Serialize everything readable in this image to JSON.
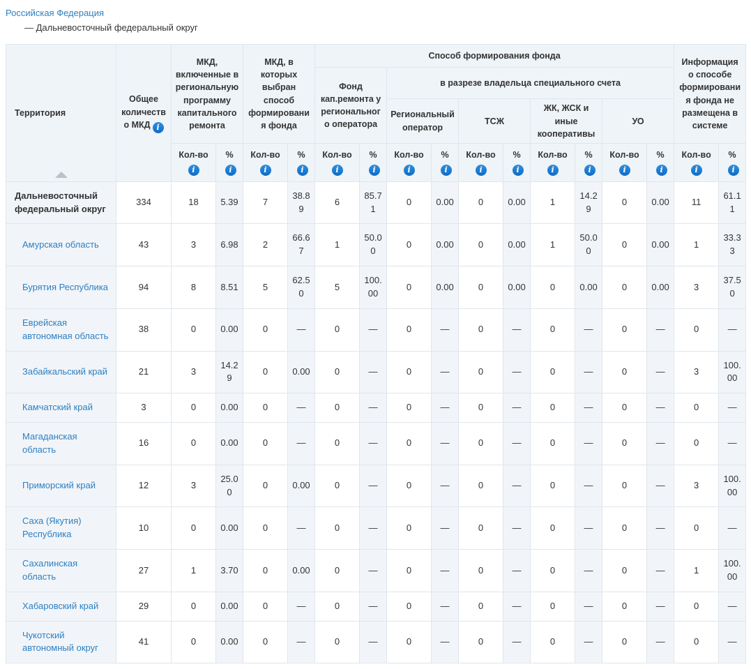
{
  "breadcrumb": {
    "root": "Российская Федерация",
    "current": "— Дальневосточный федеральный округ"
  },
  "colors": {
    "link_blue": "#2e7fc1",
    "info_icon_blue": "#1576d2",
    "row_tint": "#f1f5f9",
    "header_tint": "#eff4f8",
    "border": "#dfe6ec"
  },
  "icons": {
    "info": "info-icon",
    "sort": "sort-asc-triangle"
  },
  "table": {
    "header": {
      "territory": "Территория",
      "total_mkd": "Общее количество МКД",
      "group_program": "МКД, включенные в региональную программу капитального ремонта",
      "group_method_chosen": "МКД, в которых выбран способ формирования фонда",
      "group_method": "Способ формирования фонда",
      "fund_regional_operator": "Фонд кап.ремонта у регионального оператора",
      "special_account_owner": "в разрезе владельца специального счета",
      "regional_operator": "Региональный оператор",
      "tsg": "ТСЖ",
      "coops": "ЖК, ЖСК и иные кооперативы",
      "uo": "УО",
      "group_not_posted": "Информация о способе формирования фонда не размещена в системе",
      "count_label": "Кол-во",
      "percent_label": "%",
      "info_glyph": "i"
    },
    "rows": [
      {
        "territory": "Дальневосточный федеральный округ",
        "link": false,
        "bold": true,
        "values": [
          "334",
          "18",
          "5.39",
          "7",
          "38.89",
          "6",
          "85.71",
          "0",
          "0.00",
          "0",
          "0.00",
          "1",
          "14.29",
          "0",
          "0.00",
          "11",
          "61.11"
        ]
      },
      {
        "territory": "Амурская область",
        "link": true,
        "bold": false,
        "values": [
          "43",
          "3",
          "6.98",
          "2",
          "66.67",
          "1",
          "50.00",
          "0",
          "0.00",
          "0",
          "0.00",
          "1",
          "50.00",
          "0",
          "0.00",
          "1",
          "33.33"
        ]
      },
      {
        "territory": "Бурятия Республика",
        "link": true,
        "bold": false,
        "values": [
          "94",
          "8",
          "8.51",
          "5",
          "62.50",
          "5",
          "100.00",
          "0",
          "0.00",
          "0",
          "0.00",
          "0",
          "0.00",
          "0",
          "0.00",
          "3",
          "37.50"
        ]
      },
      {
        "territory": "Еврейская автономная область",
        "link": true,
        "bold": false,
        "values": [
          "38",
          "0",
          "0.00",
          "0",
          "—",
          "0",
          "—",
          "0",
          "—",
          "0",
          "—",
          "0",
          "—",
          "0",
          "—",
          "0",
          "—"
        ]
      },
      {
        "territory": "Забайкальский край",
        "link": true,
        "bold": false,
        "values": [
          "21",
          "3",
          "14.29",
          "0",
          "0.00",
          "0",
          "—",
          "0",
          "—",
          "0",
          "—",
          "0",
          "—",
          "0",
          "—",
          "3",
          "100.00"
        ]
      },
      {
        "territory": "Камчатский край",
        "link": true,
        "bold": false,
        "values": [
          "3",
          "0",
          "0.00",
          "0",
          "—",
          "0",
          "—",
          "0",
          "—",
          "0",
          "—",
          "0",
          "—",
          "0",
          "—",
          "0",
          "—"
        ]
      },
      {
        "territory": "Магаданская область",
        "link": true,
        "bold": false,
        "values": [
          "16",
          "0",
          "0.00",
          "0",
          "—",
          "0",
          "—",
          "0",
          "—",
          "0",
          "—",
          "0",
          "—",
          "0",
          "—",
          "0",
          "—"
        ]
      },
      {
        "territory": "Приморский край",
        "link": true,
        "bold": false,
        "values": [
          "12",
          "3",
          "25.00",
          "0",
          "0.00",
          "0",
          "—",
          "0",
          "—",
          "0",
          "—",
          "0",
          "—",
          "0",
          "—",
          "3",
          "100.00"
        ]
      },
      {
        "territory": "Саха (Якутия) Республика",
        "link": true,
        "bold": false,
        "values": [
          "10",
          "0",
          "0.00",
          "0",
          "—",
          "0",
          "—",
          "0",
          "—",
          "0",
          "—",
          "0",
          "—",
          "0",
          "—",
          "0",
          "—"
        ]
      },
      {
        "territory": "Сахалинская область",
        "link": true,
        "bold": false,
        "values": [
          "27",
          "1",
          "3.70",
          "0",
          "0.00",
          "0",
          "—",
          "0",
          "—",
          "0",
          "—",
          "0",
          "—",
          "0",
          "—",
          "1",
          "100.00"
        ]
      },
      {
        "territory": "Хабаровский край",
        "link": true,
        "bold": false,
        "values": [
          "29",
          "0",
          "0.00",
          "0",
          "—",
          "0",
          "—",
          "0",
          "—",
          "0",
          "—",
          "0",
          "—",
          "0",
          "—",
          "0",
          "—"
        ]
      },
      {
        "territory": "Чукотский автономный округ",
        "link": true,
        "bold": false,
        "values": [
          "41",
          "0",
          "0.00",
          "0",
          "—",
          "0",
          "—",
          "0",
          "—",
          "0",
          "—",
          "0",
          "—",
          "0",
          "—",
          "0",
          "—"
        ]
      }
    ]
  }
}
